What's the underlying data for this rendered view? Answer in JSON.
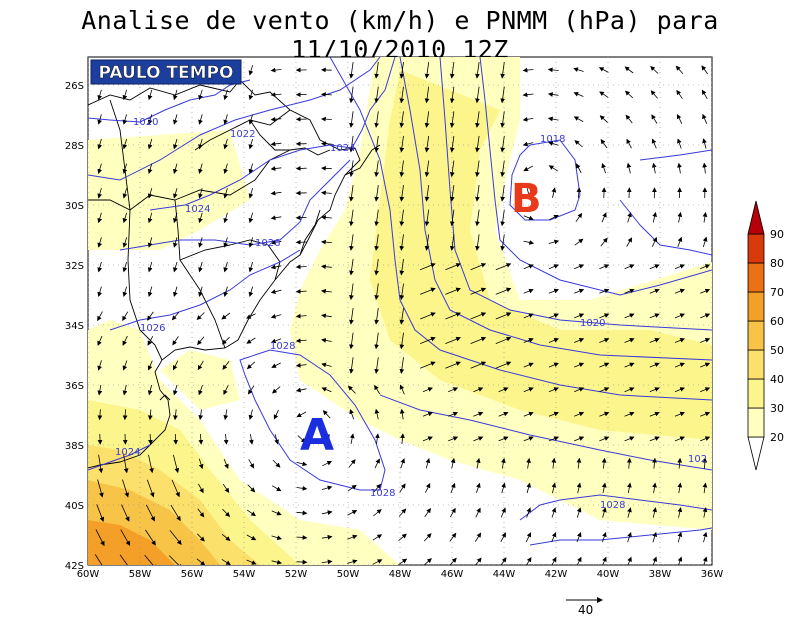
{
  "title": "Analise de vento (km/h) e PNMM (hPa) para 11/10/2010_12Z",
  "logo_text": "PAULO TEMPO",
  "lat_labels": [
    "26S",
    "28S",
    "30S",
    "32S",
    "34S",
    "36S",
    "38S",
    "40S",
    "42S"
  ],
  "lon_labels": [
    "60W",
    "58W",
    "56W",
    "54W",
    "52W",
    "50W",
    "48W",
    "46W",
    "44W",
    "42W",
    "40W",
    "38W",
    "36W"
  ],
  "isobars": [
    {
      "label": "1020",
      "value": 1020
    },
    {
      "label": "1022",
      "value": 1022
    },
    {
      "label": "1024",
      "value": 1024
    },
    {
      "label": "1026",
      "value": 1026
    },
    {
      "label": "1028",
      "value": 1028
    },
    {
      "label": "1018",
      "value": 1018
    }
  ],
  "isobar_labels": [
    "1020",
    "1022",
    "1024",
    "1024",
    "1026",
    "1026",
    "1028",
    "1024",
    "1028",
    "1018",
    "1020",
    "1028",
    "102"
  ],
  "pressure_centers": [
    {
      "letter": "A",
      "meaning": "high",
      "color": "#1a2ee0"
    },
    {
      "letter": "B",
      "meaning": "low",
      "color": "#e83a1a"
    }
  ],
  "colorbar": {
    "labels": [
      "20",
      "30",
      "40",
      "50",
      "60",
      "70",
      "80",
      "90"
    ],
    "colors": [
      "#ffffc0",
      "#fcf58c",
      "#fce06c",
      "#f8c448",
      "#f4a028",
      "#ec7014",
      "#d83a0c",
      "#b8000a"
    ]
  },
  "vector_reference": {
    "value": "40",
    "unit": "km/h"
  },
  "colors": {
    "isobar": "#3a3ad8",
    "coast": "#000000",
    "grid": "#888888"
  }
}
